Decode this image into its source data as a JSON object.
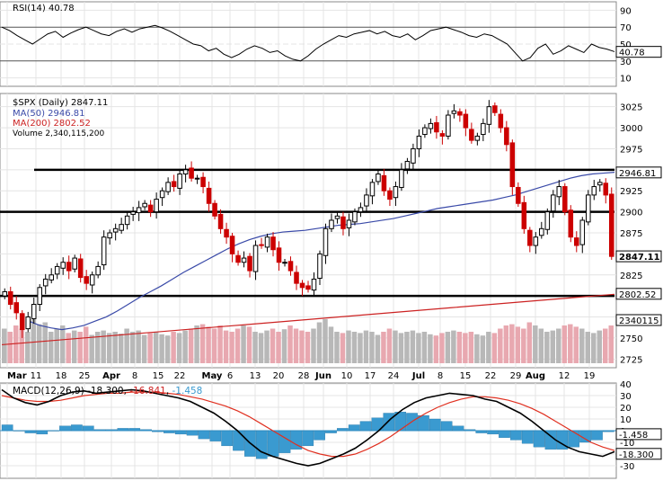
{
  "chart_data": {
    "type": "candlestick",
    "title": "$SPX (Daily) 2847.11",
    "x_ticks": [
      "Mar",
      "11",
      "18",
      "25",
      "Apr",
      "8",
      "15",
      "22",
      "May",
      "6",
      "13",
      "20",
      "28",
      "Jun",
      "10",
      "17",
      "24",
      "Jul",
      "8",
      "15",
      "22",
      "29",
      "Aug",
      "12",
      "19"
    ],
    "rsi_panel": {
      "label": "RSI(14) 40.78",
      "y_ticks": [
        "90",
        "70",
        "50",
        "30",
        "10"
      ],
      "last_value_tag": "40.78",
      "values": [
        70,
        66,
        60,
        55,
        50,
        56,
        62,
        65,
        58,
        63,
        67,
        70,
        66,
        62,
        60,
        65,
        68,
        64,
        68,
        70,
        72,
        69,
        65,
        60,
        55,
        50,
        48,
        42,
        45,
        38,
        34,
        38,
        44,
        48,
        45,
        40,
        42,
        36,
        32,
        30,
        36,
        44,
        50,
        55,
        60,
        58,
        62,
        64,
        66,
        62,
        65,
        60,
        58,
        62,
        55,
        60,
        66,
        68,
        70,
        67,
        64,
        60,
        58,
        62,
        60,
        55,
        50,
        40,
        30,
        34,
        45,
        50,
        38,
        42,
        48,
        44,
        40,
        50,
        46,
        44,
        41
      ]
    },
    "price_panel": {
      "y_ticks": [
        "3025",
        "3000",
        "2975",
        "2950",
        "2925",
        "2900",
        "2875",
        "2850",
        "2825",
        "2800",
        "2775",
        "2750",
        "2725"
      ],
      "legend": [
        "MA(50) 2946.81",
        "MA(200) 2802.52",
        "Volume 2,340,115,200"
      ],
      "last_price_tag": "2847.11",
      "ma50_tag": "2946.81",
      "ma200_tag": "2802.52",
      "volume_tag": "2340115",
      "horizontal_levels": [
        2950,
        2900,
        2800
      ],
      "closes": [
        2805,
        2790,
        2780,
        2760,
        2775,
        2790,
        2810,
        2820,
        2825,
        2835,
        2840,
        2830,
        2845,
        2822,
        2815,
        2825,
        2835,
        2870,
        2875,
        2880,
        2885,
        2895,
        2900,
        2905,
        2910,
        2900,
        2915,
        2925,
        2935,
        2930,
        2945,
        2950,
        2940,
        2940,
        2930,
        2910,
        2895,
        2880,
        2870,
        2850,
        2840,
        2845,
        2830,
        2860,
        2860,
        2870,
        2855,
        2840,
        2840,
        2830,
        2815,
        2810,
        2808,
        2820,
        2850,
        2880,
        2890,
        2895,
        2880,
        2890,
        2900,
        2905,
        2920,
        2935,
        2945,
        2925,
        2915,
        2930,
        2950,
        2960,
        2975,
        2990,
        3000,
        3005,
        2995,
        2990,
        3015,
        3020,
        3015,
        3000,
        2985,
        2990,
        3005,
        3025,
        3018,
        3000,
        2980,
        2930,
        2910,
        2880,
        2860,
        2870,
        2880,
        2900,
        2920,
        2930,
        2900,
        2870,
        2860,
        2890,
        2920,
        2930,
        2935,
        2920,
        2847
      ],
      "ma50": [
        2770,
        2765,
        2762,
        2760,
        2762,
        2765,
        2770,
        2775,
        2782,
        2790,
        2798,
        2805,
        2812,
        2820,
        2828,
        2835,
        2842,
        2849,
        2856,
        2862,
        2867,
        2871,
        2874,
        2876,
        2877,
        2878,
        2880,
        2882,
        2884,
        2885,
        2886,
        2888,
        2890,
        2892,
        2895,
        2898,
        2901,
        2904,
        2906,
        2908,
        2910,
        2912,
        2914,
        2917,
        2920,
        2924,
        2928,
        2932,
        2936,
        2940,
        2943,
        2945,
        2946,
        2947
      ],
      "ma200": [
        2742,
        2744,
        2746,
        2748,
        2750,
        2752,
        2754,
        2756,
        2758,
        2760,
        2762,
        2764,
        2766,
        2768,
        2770,
        2772,
        2774,
        2776,
        2778,
        2780,
        2782,
        2784,
        2786,
        2788,
        2790,
        2792,
        2794,
        2796,
        2798,
        2800,
        2802
      ],
      "volume": [
        0.55,
        0.5,
        0.6,
        0.55,
        0.5,
        0.7,
        0.62,
        0.65,
        0.5,
        0.55,
        0.6,
        0.48,
        0.52,
        0.5,
        0.58,
        0.45,
        0.5,
        0.52,
        0.48,
        0.5,
        0.47,
        0.55,
        0.5,
        0.52,
        0.45,
        0.48,
        0.5,
        0.46,
        0.44,
        0.5,
        0.48,
        0.52,
        0.55,
        0.6,
        0.62,
        0.58,
        0.55,
        0.6,
        0.52,
        0.5,
        0.55,
        0.6,
        0.58,
        0.5,
        0.48,
        0.52,
        0.55,
        0.5,
        0.54,
        0.6,
        0.55,
        0.52,
        0.5,
        0.55,
        0.65,
        0.7,
        0.58,
        0.5,
        0.48,
        0.52,
        0.5,
        0.48,
        0.52,
        0.5,
        0.45,
        0.5,
        0.55,
        0.52,
        0.48,
        0.5,
        0.52,
        0.48,
        0.5,
        0.46,
        0.44,
        0.48,
        0.5,
        0.52,
        0.5,
        0.48,
        0.5,
        0.46,
        0.44,
        0.5,
        0.48,
        0.55,
        0.6,
        0.62,
        0.58,
        0.55,
        0.65,
        0.6,
        0.55,
        0.5,
        0.52,
        0.55,
        0.6,
        0.62,
        0.58,
        0.55,
        0.5,
        0.48,
        0.52,
        0.55,
        0.6
      ]
    },
    "macd_panel": {
      "label_prefix": "MACD(12,26,9) -18.300, ",
      "label_signal": "-16.841",
      "label_sep": ", ",
      "label_hist": "-1.458",
      "y_ticks": [
        "40",
        "30",
        "20",
        "10",
        "0",
        "-10",
        "-20",
        "-30"
      ],
      "hist_tag": "-1.458",
      "macd_tag": "-18.300",
      "macd": [
        35,
        28,
        24,
        22,
        25,
        30,
        33,
        34,
        32,
        33,
        34,
        35,
        34,
        32,
        30,
        28,
        25,
        20,
        15,
        8,
        0,
        -10,
        -18,
        -22,
        -25,
        -28,
        -30,
        -28,
        -24,
        -20,
        -15,
        -8,
        0,
        10,
        18,
        24,
        28,
        30,
        32,
        31,
        30,
        27,
        25,
        20,
        15,
        8,
        0,
        -8,
        -14,
        -18,
        -20,
        -22,
        -18
      ],
      "signal": [
        30,
        28,
        26,
        25,
        25,
        26,
        28,
        30,
        31,
        32,
        32,
        33,
        33,
        33,
        32,
        31,
        29,
        27,
        24,
        21,
        17,
        12,
        6,
        0,
        -6,
        -12,
        -17,
        -20,
        -22,
        -22,
        -20,
        -16,
        -11,
        -5,
        2,
        9,
        15,
        20,
        24,
        27,
        29,
        29,
        28,
        26,
        23,
        19,
        14,
        8,
        2,
        -4,
        -10,
        -14,
        -17
      ],
      "histogram": [
        5,
        0,
        -2,
        -3,
        0,
        4,
        5,
        4,
        1,
        1,
        2,
        2,
        1,
        -1,
        -2,
        -3,
        -4,
        -7,
        -9,
        -13,
        -17,
        -22,
        -24,
        -22,
        -19,
        -16,
        -13,
        -8,
        -2,
        2,
        5,
        8,
        11,
        15,
        16,
        15,
        13,
        10,
        8,
        4,
        1,
        -2,
        -3,
        -6,
        -8,
        -11,
        -14,
        -16,
        -16,
        -14,
        -10,
        -8,
        -1
      ]
    },
    "colors": {
      "up": "#000000",
      "down": "#cc0000",
      "ma50": "#3a4aa8",
      "ma200": "#cc2222",
      "vol_up": "#b8b8b8",
      "vol_down": "#e8a8b0",
      "hist": "#3a9ad0",
      "signal": "#e03020",
      "rsi": "#000000"
    },
    "legend_placement": "top-left",
    "grid": true
  }
}
